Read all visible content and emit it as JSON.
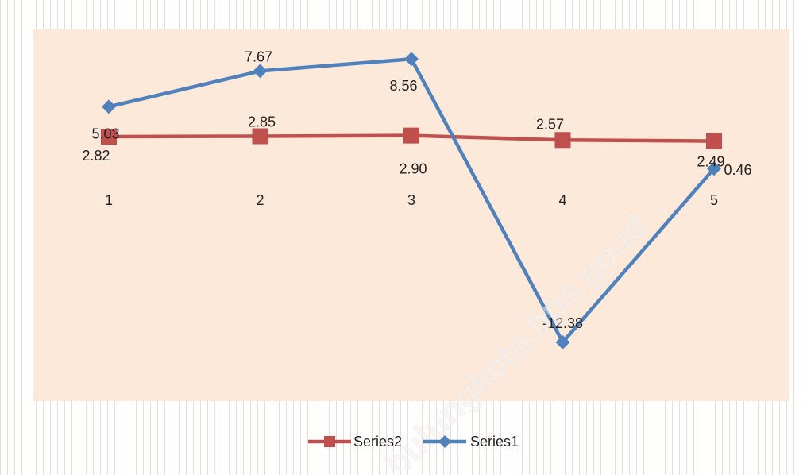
{
  "watermark": "bulungkota.bps.go.id",
  "chart_data": {
    "type": "line",
    "categories": [
      "1",
      "2",
      "3",
      "4",
      "5"
    ],
    "series": [
      {
        "name": "Series2",
        "color": "#c0504d",
        "marker": "square",
        "values": [
          2.82,
          2.85,
          2.9,
          2.57,
          2.49
        ],
        "labels": [
          "2.82",
          "2.85",
          "2.90",
          "2.57",
          "2.49"
        ]
      },
      {
        "name": "Series1",
        "color": "#4f81bd",
        "marker": "diamond",
        "values": [
          5.03,
          7.67,
          8.56,
          -12.38,
          0.46
        ],
        "labels": [
          "5.03",
          "7.67",
          "8.56",
          "-12.38",
          "0.46"
        ]
      }
    ],
    "ylim": [
      -15,
      10
    ],
    "grid": false,
    "legend_position": "bottom",
    "plot_background": "#fde9d9",
    "title": "",
    "xlabel": "",
    "ylabel": ""
  }
}
